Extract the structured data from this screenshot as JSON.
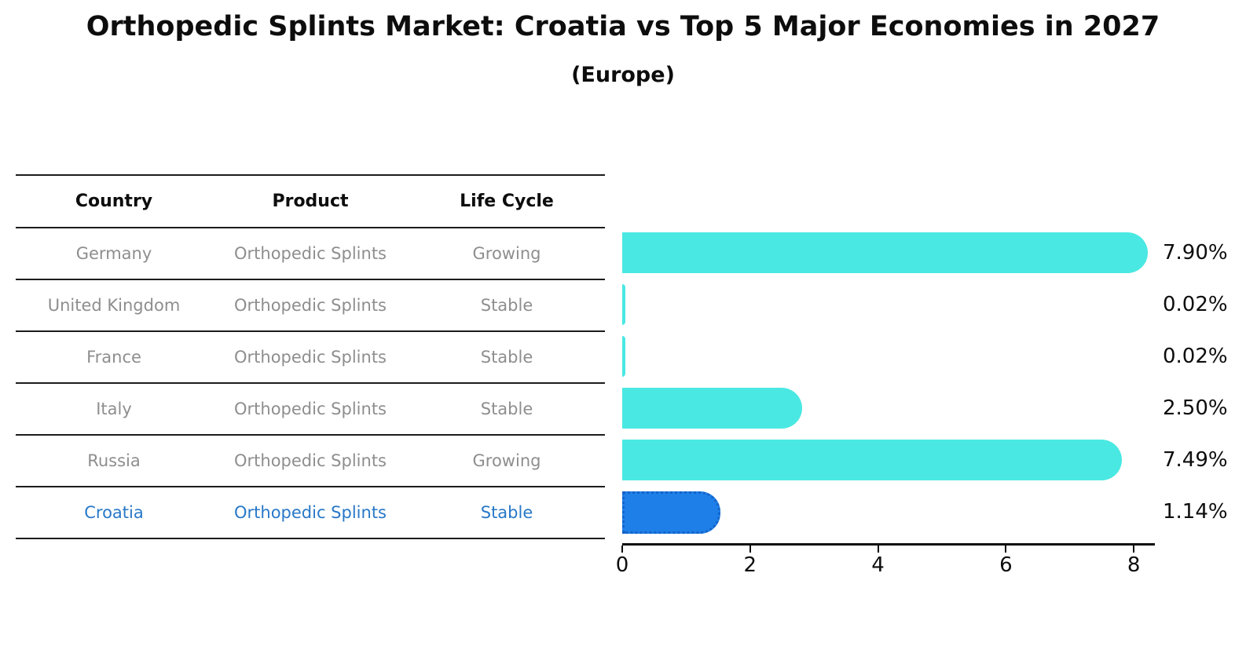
{
  "chart": {
    "title": "Orthopedic Splints Market: Croatia vs Top 5 Major Economies in 2027",
    "subtitle": "(Europe)"
  },
  "table": {
    "headers": {
      "country": "Country",
      "product": "Product",
      "life_cycle": "Life Cycle"
    }
  },
  "rows": [
    {
      "country": "Germany",
      "product": "Orthopedic Splints",
      "life_cycle": "Growing",
      "value": 7.9,
      "value_label": "7.90%"
    },
    {
      "country": "United Kingdom",
      "product": "Orthopedic Splints",
      "life_cycle": "Stable",
      "value": 0.02,
      "value_label": "0.02%"
    },
    {
      "country": "France",
      "product": "Orthopedic Splints",
      "life_cycle": "Stable",
      "value": 0.02,
      "value_label": "0.02%"
    },
    {
      "country": "Italy",
      "product": "Orthopedic Splints",
      "life_cycle": "Stable",
      "value": 2.5,
      "value_label": "2.50%"
    },
    {
      "country": "Russia",
      "product": "Orthopedic Splints",
      "life_cycle": "Growing",
      "value": 7.49,
      "value_label": "7.49%"
    },
    {
      "country": "Croatia",
      "product": "Orthopedic Splints",
      "life_cycle": "Stable",
      "value": 1.14,
      "value_label": "1.14%"
    }
  ],
  "chart_data": {
    "type": "bar",
    "orientation": "horizontal",
    "title": "Orthopedic Splints Market: Croatia vs Top 5 Major Economies in 2027 (Europe)",
    "categories": [
      "Germany",
      "United Kingdom",
      "France",
      "Italy",
      "Russia",
      "Croatia"
    ],
    "values": [
      7.9,
      0.02,
      0.02,
      2.5,
      7.49,
      1.14
    ],
    "value_labels": [
      "7.90%",
      "0.02%",
      "0.02%",
      "2.50%",
      "7.49%",
      "1.14%"
    ],
    "life_cycles": [
      "Growing",
      "Stable",
      "Stable",
      "Stable",
      "Growing",
      "Stable"
    ],
    "product": "Orthopedic Splints",
    "x_ticks": [
      0,
      2,
      4,
      6,
      8
    ],
    "xlim": [
      0,
      8.33
    ],
    "grid": false,
    "legend": false,
    "bar_color": "#4ae8e2",
    "highlight_color": "#1e7fe8",
    "highlight_text_color": "#2878c8",
    "highlight_index": 5
  }
}
